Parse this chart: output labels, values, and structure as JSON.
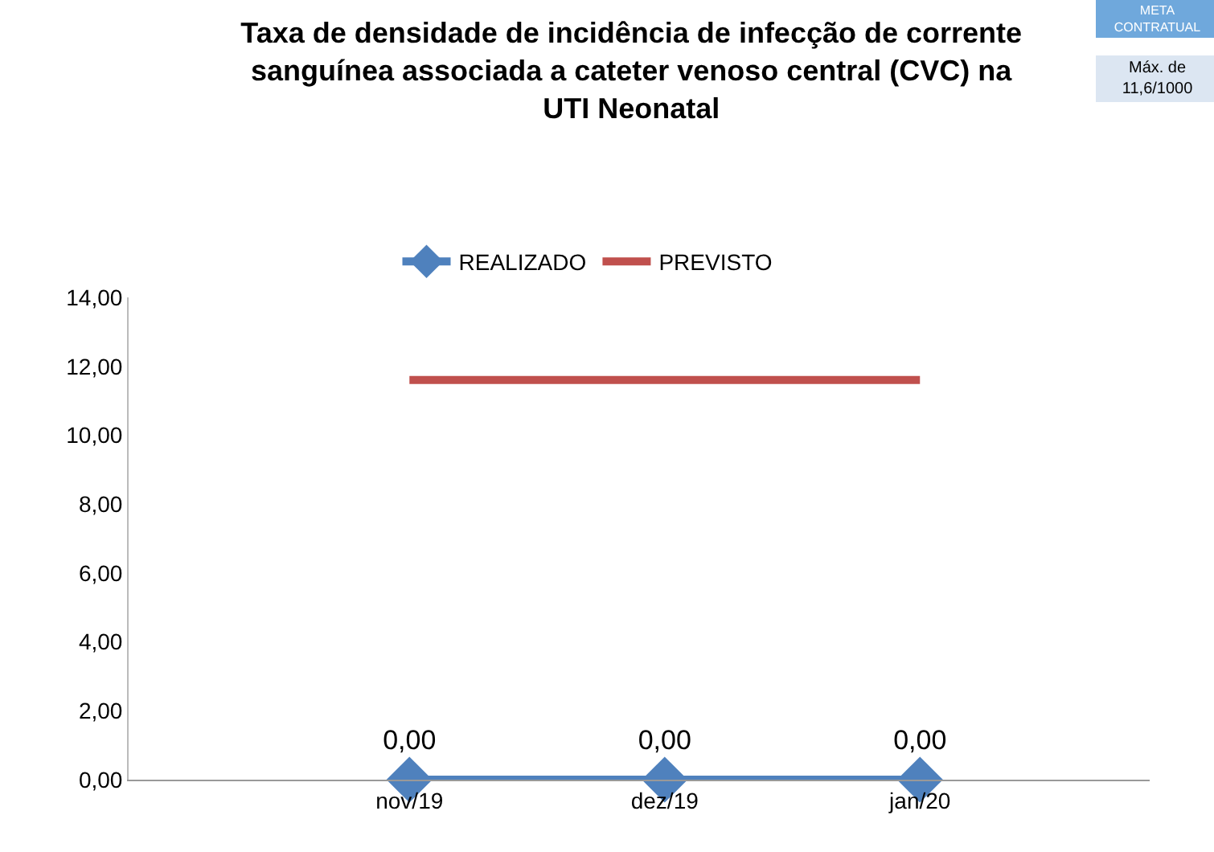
{
  "chart_data": {
    "type": "line",
    "title": "Taxa de densidade de incidência de infecção de corrente sanguínea associada a cateter venoso central (CVC) na UTI Neonatal",
    "categories": [
      "nov/19",
      "dez/19",
      "jan/20"
    ],
    "series": [
      {
        "name": "REALIZADO",
        "color": "#4f81bd",
        "values": [
          0,
          0,
          0
        ],
        "marker": "diamond",
        "value_labels": [
          "0,00",
          "0,00",
          "0,00"
        ]
      },
      {
        "name": "PREVISTO",
        "color": "#c0504d",
        "values": [
          11.6,
          11.6,
          11.6
        ],
        "marker": "none"
      }
    ],
    "ylim": [
      0,
      14
    ],
    "yticks": [
      {
        "value": 0,
        "label": "0,00"
      },
      {
        "value": 2,
        "label": "2,00"
      },
      {
        "value": 4,
        "label": "4,00"
      },
      {
        "value": 6,
        "label": "6,00"
      },
      {
        "value": 8,
        "label": "8,00"
      },
      {
        "value": 10,
        "label": "10,00"
      },
      {
        "value": 12,
        "label": "12,00"
      },
      {
        "value": 14,
        "label": "14,00"
      }
    ],
    "grid": false,
    "legend": "top",
    "line_style": "solid",
    "annotations": [
      "META CONTRATUAL",
      "Máx. de 11,6/1000"
    ]
  }
}
